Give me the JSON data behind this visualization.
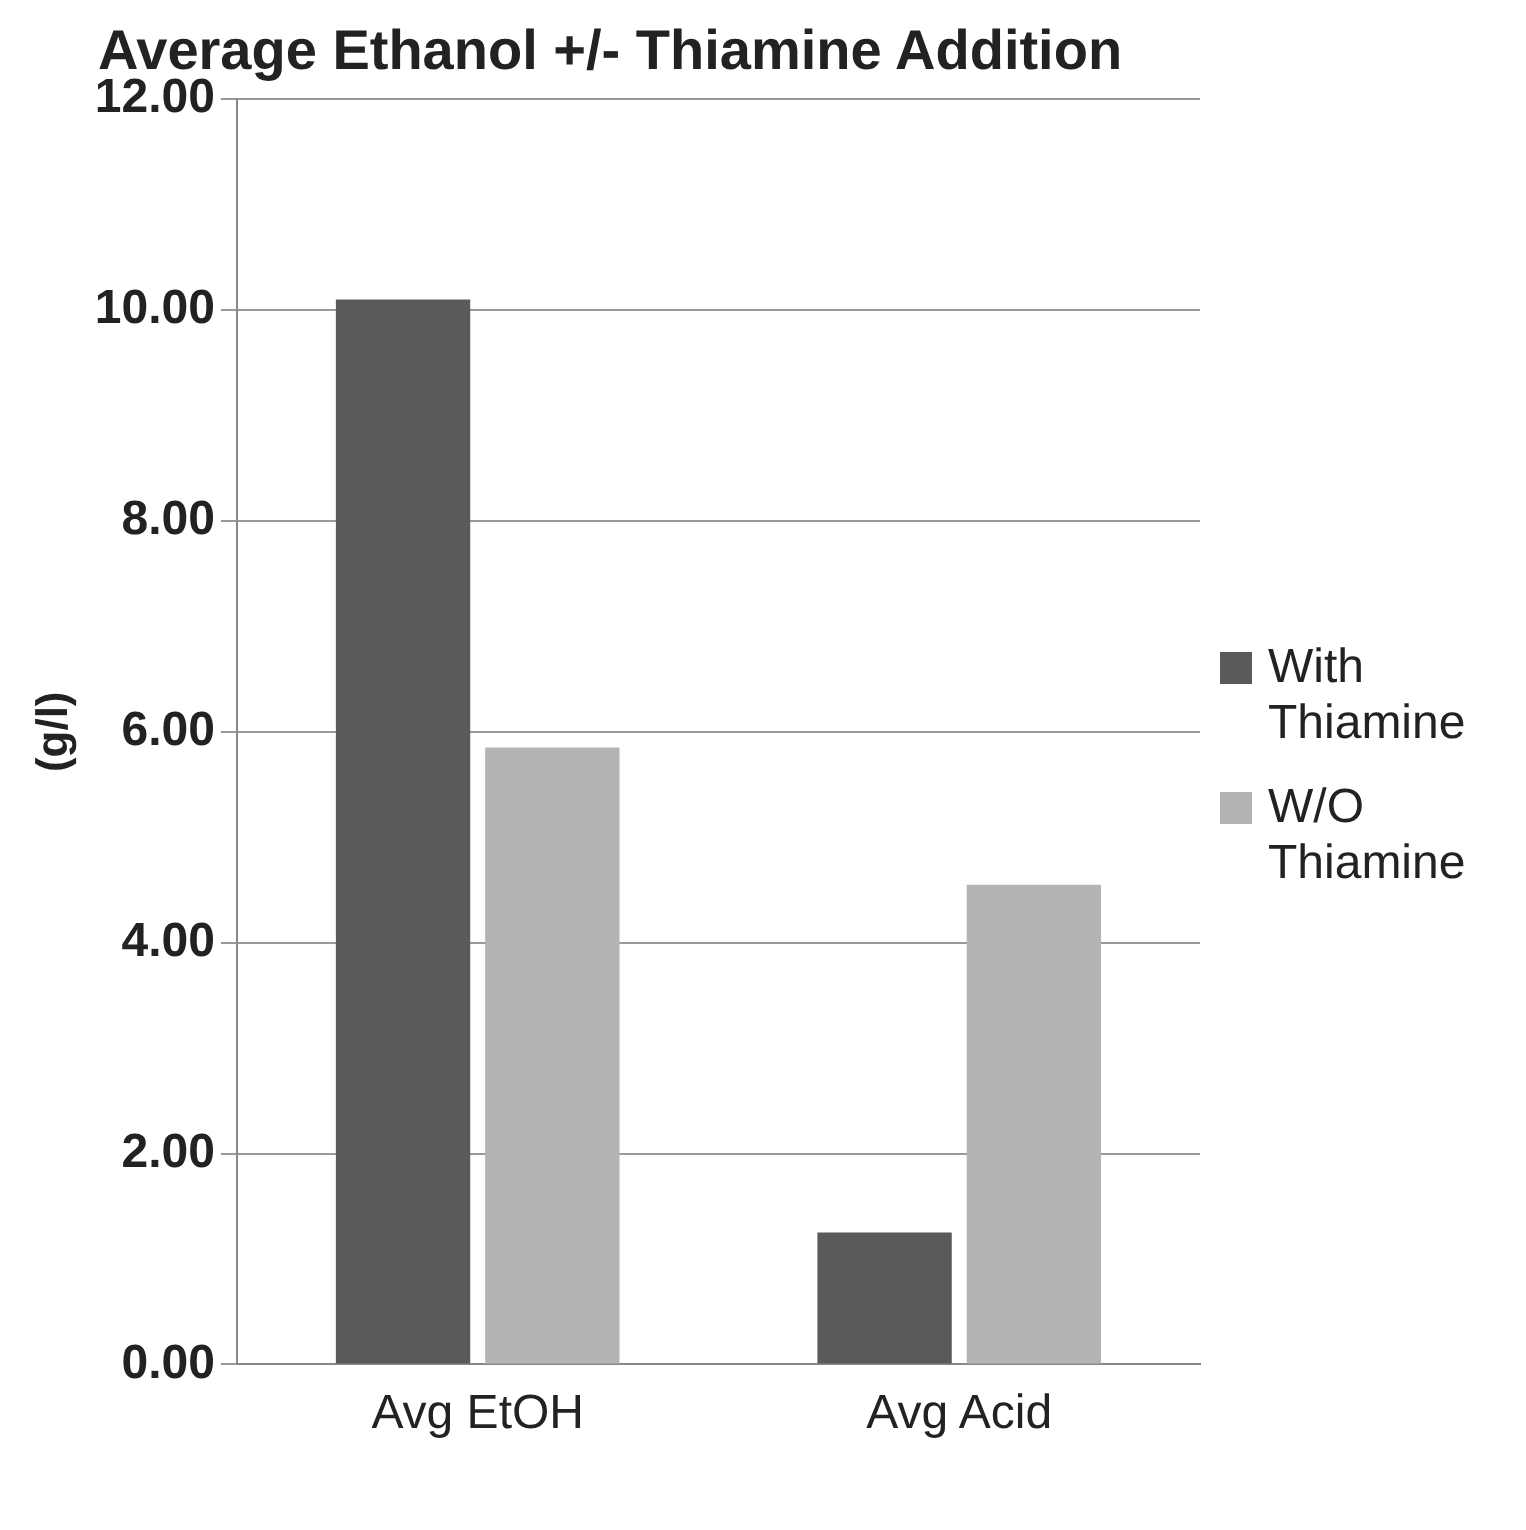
{
  "chart_data": {
    "type": "bar",
    "title": "Average Ethanol +/- Thiamine Addition",
    "ylabel": "(g/l)",
    "categories": [
      "Avg EtOH",
      "Avg Acid"
    ],
    "series": [
      {
        "name": "With Thiamine",
        "color": "#5a5a5a",
        "values": [
          10.1,
          1.25
        ]
      },
      {
        "name": "W/O Thiamine",
        "color": "#b4b4b4",
        "values": [
          5.85,
          4.55
        ]
      }
    ],
    "ylim": [
      0,
      12
    ],
    "yticks": [
      {
        "value": 0,
        "label": "0.00"
      },
      {
        "value": 2,
        "label": "2.00"
      },
      {
        "value": 4,
        "label": "4.00"
      },
      {
        "value": 6,
        "label": "6.00"
      },
      {
        "value": 8,
        "label": "8.00"
      },
      {
        "value": 10,
        "label": "10.00"
      },
      {
        "value": 12,
        "label": "12.00"
      }
    ],
    "grid": "y",
    "legend": "right"
  }
}
